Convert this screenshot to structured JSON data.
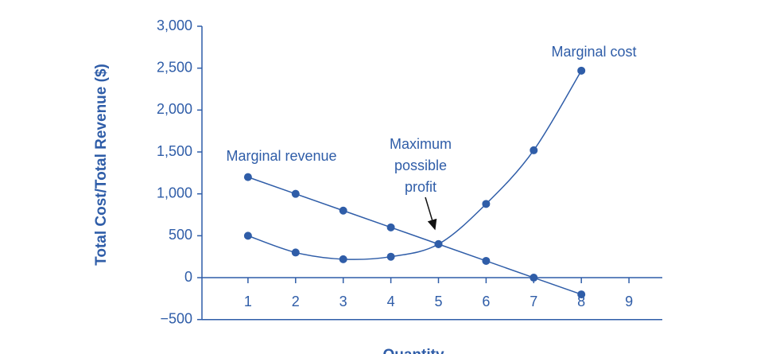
{
  "chart_data": {
    "type": "line",
    "y_label": "Total Cost/Total Revenue ($)",
    "x_label": "Quantity",
    "annotation": [
      "Maximum",
      "possible",
      "profit"
    ],
    "x": [
      1,
      2,
      3,
      4,
      5,
      6,
      7,
      8
    ],
    "series": [
      {
        "name": "Marginal revenue",
        "color": "#2f5da8",
        "smooth": false,
        "values": [
          1200,
          1000,
          800,
          600,
          400,
          200,
          0,
          -200
        ]
      },
      {
        "name": "Marginal cost",
        "color": "#2f5da8",
        "smooth": true,
        "values": [
          500,
          300,
          220,
          250,
          400,
          880,
          1520,
          2470
        ]
      }
    ],
    "xlim": [
      0,
      9.7
    ],
    "xticks": [
      1,
      2,
      3,
      4,
      5,
      6,
      7,
      8,
      9
    ],
    "ylim": [
      -500,
      3000
    ],
    "yticks": [
      {
        "value": -500,
        "label": "−500"
      },
      0,
      500,
      {
        "value": 1000,
        "label": "1,000"
      },
      {
        "value": 1500,
        "label": "1,500"
      },
      {
        "value": 2000,
        "label": "2,000"
      },
      {
        "value": 2500,
        "label": "2,500"
      },
      {
        "value": 3000,
        "label": "3,000"
      }
    ]
  }
}
